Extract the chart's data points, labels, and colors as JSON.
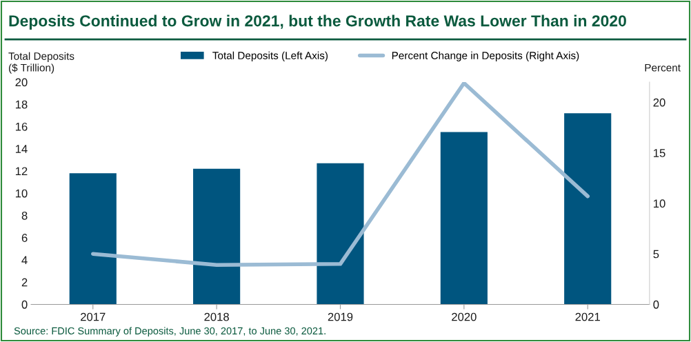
{
  "chart_data": {
    "type": "bar",
    "title": "Deposits Continued to Grow in 2021, but the Growth Rate Was Lower Than in 2020",
    "categories": [
      "2017",
      "2018",
      "2019",
      "2020",
      "2021"
    ],
    "series": [
      {
        "name": "Total Deposits (Left Axis)",
        "color": "#00557f",
        "values": [
          11.8,
          12.2,
          12.7,
          15.5,
          17.2
        ]
      },
      {
        "name": "Percent Change in Deposits (Right Axis)",
        "type": "line",
        "axis": "y2",
        "color": "#9bbbd4",
        "values": [
          5.0,
          3.9,
          4.0,
          21.9,
          10.7
        ]
      }
    ],
    "ylabel": "Total Deposits\n($ Trillion)",
    "y2label": "Percent",
    "ylim": [
      0,
      20
    ],
    "yticks": [
      0,
      2,
      4,
      6,
      8,
      10,
      12,
      14,
      16,
      18,
      20
    ],
    "y2lim": [
      0,
      22
    ],
    "y2ticks": [
      0,
      5,
      10,
      15,
      20
    ],
    "grid": false,
    "legend": "top",
    "marker": "none",
    "line_style": "solid",
    "annotations": [
      "Source: FDIC Summary of Deposits, June 30, 2017, to June 30, 2021."
    ]
  }
}
